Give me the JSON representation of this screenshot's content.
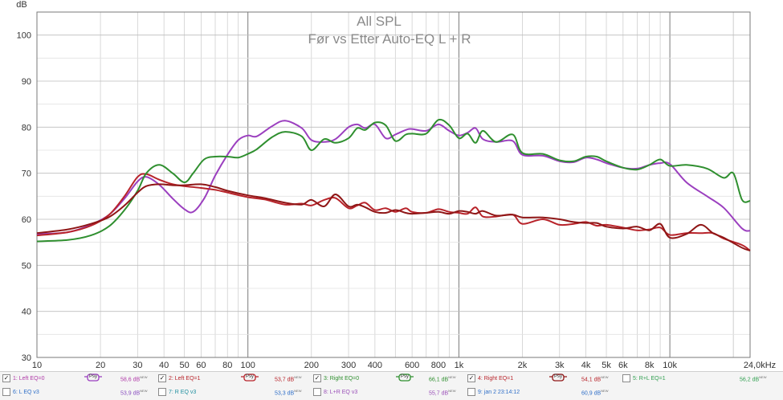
{
  "chart_data": {
    "type": "line",
    "title": "All SPL",
    "subtitle": "Før vs Etter Auto-EQ L + R",
    "ylabel": "dB",
    "xscale": "log",
    "xlim": [
      10,
      24000
    ],
    "ylim": [
      30,
      105
    ],
    "x_ticks": [
      {
        "v": 10,
        "label": "10"
      },
      {
        "v": 20,
        "label": "20"
      },
      {
        "v": 30,
        "label": "30"
      },
      {
        "v": 40,
        "label": "40"
      },
      {
        "v": 50,
        "label": "50"
      },
      {
        "v": 60,
        "label": "60"
      },
      {
        "v": 80,
        "label": "80"
      },
      {
        "v": 100,
        "label": "100"
      },
      {
        "v": 200,
        "label": "200"
      },
      {
        "v": 300,
        "label": "300"
      },
      {
        "v": 400,
        "label": "400"
      },
      {
        "v": 600,
        "label": "600"
      },
      {
        "v": 800,
        "label": "800"
      },
      {
        "v": 1000,
        "label": "1k"
      },
      {
        "v": 2000,
        "label": "2k"
      },
      {
        "v": 3000,
        "label": "3k"
      },
      {
        "v": 4000,
        "label": "4k"
      },
      {
        "v": 5000,
        "label": "5k"
      },
      {
        "v": 6000,
        "label": "6k"
      },
      {
        "v": 8000,
        "label": "8k"
      },
      {
        "v": 10000,
        "label": "10k"
      },
      {
        "v": 24000,
        "label": "24,0kHz"
      }
    ],
    "y_ticks": [
      {
        "v": 30,
        "label": "30"
      },
      {
        "v": 40,
        "label": "40"
      },
      {
        "v": 50,
        "label": "50"
      },
      {
        "v": 60,
        "label": "60"
      },
      {
        "v": 70,
        "label": "70"
      },
      {
        "v": 80,
        "label": "80"
      },
      {
        "v": 90,
        "label": "90"
      },
      {
        "v": 100,
        "label": "100"
      }
    ],
    "series": [
      {
        "name": "1: Left EQ=0",
        "color": "#9b3fbf",
        "x": [
          10,
          14,
          18,
          22,
          26,
          30,
          33,
          38,
          44,
          50,
          55,
          62,
          70,
          80,
          90,
          100,
          110,
          130,
          150,
          180,
          200,
          230,
          260,
          300,
          330,
          360,
          400,
          450,
          500,
          560,
          600,
          700,
          800,
          900,
          1000,
          1100,
          1200,
          1300,
          1500,
          1800,
          2000,
          2500,
          3000,
          3500,
          4000,
          4500,
          5000,
          6000,
          7000,
          8000,
          9000,
          10000,
          12000,
          15000,
          18000,
          22000,
          24000
        ],
        "y": [
          56.8,
          57.2,
          58.8,
          61.0,
          64.5,
          68.2,
          69.2,
          67.5,
          64.5,
          62.2,
          61.6,
          64.5,
          69.5,
          74.0,
          77.2,
          78.2,
          78.0,
          80.2,
          81.4,
          79.8,
          77.2,
          76.8,
          77.4,
          80.0,
          80.6,
          79.8,
          80.6,
          77.6,
          78.4,
          79.4,
          79.6,
          79.2,
          80.6,
          79.2,
          78.2,
          78.8,
          79.8,
          77.4,
          76.8,
          77.0,
          74.0,
          73.8,
          72.6,
          72.4,
          73.4,
          73.0,
          72.2,
          71.2,
          71.0,
          71.8,
          72.2,
          72.0,
          68.0,
          65.0,
          62.5,
          58.0,
          57.5
        ]
      },
      {
        "name": "2: Left EQ=1",
        "color": "#b8232a",
        "x": [
          10,
          14,
          18,
          22,
          26,
          30,
          33,
          38,
          44,
          50,
          60,
          70,
          80,
          100,
          120,
          150,
          180,
          200,
          230,
          260,
          300,
          330,
          360,
          400,
          450,
          500,
          560,
          600,
          700,
          800,
          900,
          1000,
          1100,
          1200,
          1300,
          1500,
          1800,
          2000,
          2500,
          3000,
          3500,
          4000,
          4500,
          5000,
          6000,
          7000,
          8000,
          9000,
          10000,
          12000,
          14000,
          16000,
          18000,
          22000,
          24000
        ],
        "y": [
          56.5,
          57.2,
          58.6,
          61.0,
          65.0,
          69.2,
          69.8,
          68.6,
          67.6,
          67.2,
          66.8,
          66.4,
          65.8,
          64.8,
          64.3,
          63.2,
          63.4,
          63.0,
          64.2,
          64.6,
          62.4,
          63.0,
          63.6,
          62.0,
          62.4,
          61.6,
          62.4,
          61.6,
          61.4,
          62.2,
          61.6,
          61.4,
          61.2,
          62.6,
          60.6,
          60.6,
          61.0,
          59.0,
          60.0,
          58.8,
          59.0,
          59.4,
          58.6,
          58.8,
          58.2,
          57.6,
          57.8,
          58.2,
          56.6,
          57.0,
          57.0,
          57.0,
          55.8,
          54.4,
          53.2
        ]
      },
      {
        "name": "3: Right EQ=0",
        "color": "#2f8f2f",
        "x": [
          10,
          14,
          18,
          22,
          26,
          30,
          33,
          38,
          44,
          50,
          55,
          62,
          70,
          80,
          90,
          100,
          110,
          130,
          150,
          180,
          200,
          230,
          260,
          300,
          330,
          360,
          400,
          450,
          500,
          560,
          600,
          700,
          800,
          900,
          1000,
          1100,
          1200,
          1300,
          1500,
          1800,
          2000,
          2500,
          3000,
          3500,
          4000,
          4500,
          5000,
          6000,
          7000,
          8000,
          9000,
          10000,
          12000,
          15000,
          18000,
          20000,
          22000,
          24000
        ],
        "y": [
          55.2,
          55.5,
          56.5,
          58.5,
          62.0,
          66.2,
          70.0,
          71.8,
          70.0,
          68.0,
          70.0,
          73.0,
          73.6,
          73.6,
          73.4,
          74.2,
          75.2,
          77.8,
          79.0,
          78.0,
          75.0,
          77.4,
          76.6,
          77.6,
          79.8,
          79.4,
          81.0,
          80.4,
          77.0,
          78.4,
          78.6,
          78.6,
          81.6,
          80.4,
          77.6,
          78.6,
          76.6,
          79.2,
          76.8,
          78.4,
          74.4,
          74.2,
          72.8,
          72.6,
          73.6,
          73.6,
          72.6,
          71.2,
          70.8,
          71.8,
          73.0,
          71.6,
          71.8,
          71.0,
          69.0,
          70.0,
          64.2,
          64.0
        ]
      },
      {
        "name": "4: Right EQ=1",
        "color": "#8f1616",
        "x": [
          10,
          14,
          18,
          22,
          26,
          30,
          33,
          38,
          44,
          50,
          60,
          70,
          80,
          100,
          120,
          150,
          180,
          200,
          230,
          260,
          300,
          330,
          360,
          400,
          450,
          500,
          560,
          600,
          700,
          800,
          900,
          1000,
          1100,
          1200,
          1300,
          1500,
          1800,
          2000,
          2500,
          3000,
          3500,
          4000,
          4500,
          5000,
          6000,
          7000,
          8000,
          9000,
          10000,
          12000,
          14000,
          16000,
          18000,
          22000,
          24000
        ],
        "y": [
          57.0,
          57.8,
          59.0,
          60.5,
          63.0,
          65.8,
          67.2,
          67.6,
          67.4,
          67.4,
          67.6,
          67.0,
          66.2,
          65.2,
          64.6,
          63.6,
          63.2,
          64.2,
          62.8,
          65.4,
          62.8,
          63.2,
          62.6,
          61.6,
          61.4,
          62.0,
          61.4,
          61.2,
          61.4,
          61.6,
          61.2,
          61.8,
          61.6,
          61.2,
          61.8,
          60.8,
          61.0,
          60.4,
          60.4,
          60.0,
          59.4,
          59.2,
          59.2,
          58.4,
          58.0,
          58.4,
          57.6,
          59.0,
          56.0,
          56.8,
          58.8,
          57.0,
          56.0,
          53.8,
          53.2
        ]
      }
    ]
  },
  "legend": {
    "row1": [
      {
        "check": "✓",
        "label": "1: Left EQ=0",
        "color": "#b03aa8",
        "psy": "Psy",
        "psy_color": "#9b3fbf",
        "spl": "58,6 dB",
        "sup": "NEW",
        "spl_color": "#b03aa8"
      },
      {
        "check": "✓",
        "label": "2: Left EQ=1",
        "color": "#b8232a",
        "psy": "Psy",
        "psy_color": "#b8232a",
        "spl": "53,7 dB",
        "sup": "NEW",
        "spl_color": "#b8232a"
      },
      {
        "check": "✓",
        "label": "3: Right EQ=0",
        "color": "#2f8f2f",
        "psy": "Psy",
        "psy_color": "#2f8f2f",
        "spl": "66,1 dB",
        "sup": "NEW",
        "spl_color": "#2f8f2f"
      },
      {
        "check": "✓",
        "label": "4: Right EQ=1",
        "color": "#b8232a",
        "psy": "Psy",
        "psy_color": "#8f1616",
        "spl": "54,1 dB",
        "sup": "NEW",
        "spl_color": "#b8232a"
      },
      {
        "check": "",
        "label": "5: R+L EQ=1",
        "color": "#2f9f4f",
        "spl": "56,2 dB",
        "sup": "NEW",
        "spl_color": "#2f9f4f"
      }
    ],
    "row2": [
      {
        "check": "",
        "label": "6: L EQ v3",
        "color": "#2f6fc8",
        "spl": "53,9 dB",
        "sup": "NEW",
        "spl_color": "#8a4fc0"
      },
      {
        "check": "",
        "label": "7: R EQ v3",
        "color": "#1f8f9f",
        "spl": "53,3 dB",
        "sup": "NEW",
        "spl_color": "#2f6fc8"
      },
      {
        "check": "",
        "label": "8: L+R EQ v3",
        "color": "#9a4fb8",
        "spl": "55,7 dB",
        "sup": "NEW",
        "spl_color": "#9a4fb8"
      },
      {
        "check": "",
        "label": "9: jan 2 23:14:12",
        "color": "#2f6fc8",
        "spl": "60,9 dB",
        "sup": "NEW",
        "spl_color": "#2f6fc8"
      }
    ]
  }
}
